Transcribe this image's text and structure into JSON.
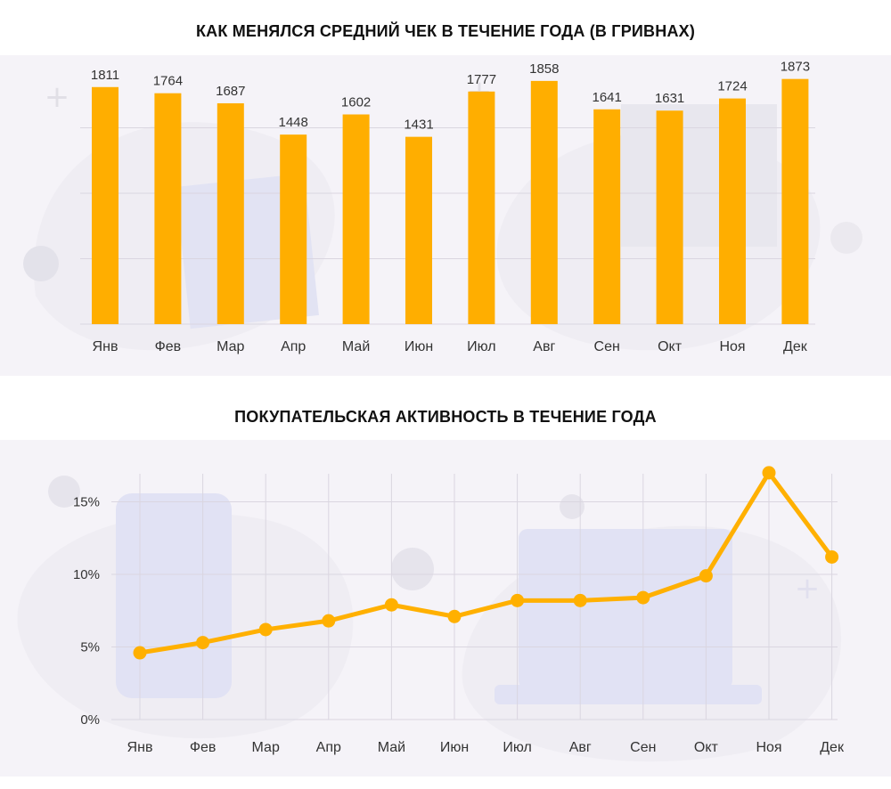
{
  "colors": {
    "bar": "#ffae00",
    "line": "#ffb000",
    "panel_bg": "#f5f3f8",
    "grid": "#dad6e0",
    "decor": "#dfe0f2"
  },
  "chart_data": [
    {
      "type": "bar",
      "title": "КАК МЕНЯЛСЯ СРЕДНИЙ ЧЕК В ТЕЧЕНИЕ ГОДА (В ГРИВНАХ)",
      "categories": [
        "Янв",
        "Фев",
        "Мар",
        "Апр",
        "Май",
        "Июн",
        "Июл",
        "Авг",
        "Сен",
        "Окт",
        "Ноя",
        "Дек"
      ],
      "values": [
        1811,
        1764,
        1687,
        1448,
        1602,
        1431,
        1777,
        1858,
        1641,
        1631,
        1724,
        1873
      ],
      "data_labels": [
        "1811",
        "1764",
        "1687",
        "1448",
        "1602",
        "1431",
        "1777",
        "1858",
        "1641",
        "1631",
        "1724",
        "1873"
      ],
      "ylim": [
        0,
        2000
      ],
      "grid": true
    },
    {
      "type": "line",
      "title": "ПОКУПАТЕЛЬСКАЯ АКТИВНОСТЬ В ТЕЧЕНИЕ ГОДА",
      "categories": [
        "Янв",
        "Фев",
        "Мар",
        "Апр",
        "Май",
        "Июн",
        "Июл",
        "Авг",
        "Сен",
        "Окт",
        "Ноя",
        "Дек"
      ],
      "values": [
        4.6,
        5.3,
        6.2,
        6.8,
        7.9,
        7.1,
        8.2,
        8.2,
        8.4,
        9.9,
        17.0,
        11.2
      ],
      "yticks": [
        "0%",
        "5%",
        "10%",
        "15%"
      ],
      "ylim": [
        0,
        17.5
      ],
      "grid": true
    }
  ]
}
